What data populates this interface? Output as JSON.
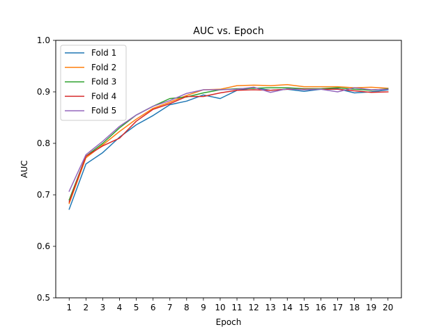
{
  "chart_data": {
    "type": "line",
    "title": "AUC vs. Epoch",
    "xlabel": "Epoch",
    "ylabel": "AUC",
    "ylim": [
      0.5,
      1.0
    ],
    "xlim": [
      0.2,
      20.8
    ],
    "yticks": [
      "0.5",
      "0.6",
      "0.7",
      "0.8",
      "0.9",
      "1.0"
    ],
    "grid": false,
    "legend_position": "top-left",
    "x": [
      1,
      2,
      3,
      4,
      5,
      6,
      7,
      8,
      9,
      10,
      11,
      12,
      13,
      14,
      15,
      16,
      17,
      18,
      19,
      20
    ],
    "series": [
      {
        "name": "Fold 1",
        "color": "#1f77b4",
        "values": [
          0.672,
          0.76,
          0.782,
          0.812,
          0.836,
          0.854,
          0.875,
          0.882,
          0.894,
          0.887,
          0.903,
          0.908,
          0.903,
          0.905,
          0.901,
          0.905,
          0.906,
          0.898,
          0.9,
          0.904
        ]
      },
      {
        "name": "Fold 2",
        "color": "#ff7f0e",
        "values": [
          0.683,
          0.772,
          0.797,
          0.823,
          0.847,
          0.868,
          0.88,
          0.893,
          0.904,
          0.905,
          0.912,
          0.913,
          0.912,
          0.914,
          0.91,
          0.91,
          0.91,
          0.908,
          0.909,
          0.907
        ]
      },
      {
        "name": "Fold 3",
        "color": "#2ca02c",
        "values": [
          0.69,
          0.775,
          0.8,
          0.83,
          0.855,
          0.872,
          0.887,
          0.89,
          0.898,
          0.904,
          0.906,
          0.907,
          0.908,
          0.908,
          0.906,
          0.906,
          0.908,
          0.905,
          0.903,
          0.906
        ]
      },
      {
        "name": "Fold 4",
        "color": "#d62728",
        "values": [
          0.686,
          0.775,
          0.795,
          0.81,
          0.843,
          0.866,
          0.877,
          0.891,
          0.891,
          0.898,
          0.903,
          0.904,
          0.903,
          0.905,
          0.905,
          0.905,
          0.905,
          0.902,
          0.899,
          0.9
        ]
      },
      {
        "name": "Fold 5",
        "color": "#9467bd",
        "values": [
          0.707,
          0.778,
          0.804,
          0.833,
          0.855,
          0.872,
          0.883,
          0.897,
          0.904,
          0.904,
          0.905,
          0.909,
          0.899,
          0.906,
          0.904,
          0.905,
          0.9,
          0.908,
          0.904,
          0.905
        ]
      }
    ]
  }
}
